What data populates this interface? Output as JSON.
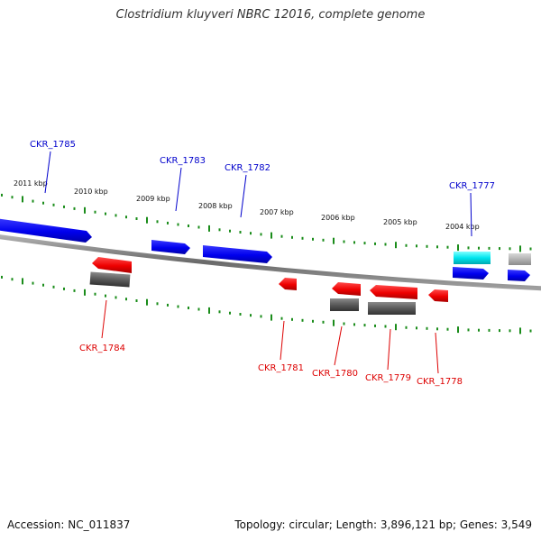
{
  "title": "Clostridium kluyveri NBRC 12016, complete genome",
  "footer": {
    "accession": "Accession: NC_011837",
    "summary": "Topology: circular; Length: 3,896,121 bp; Genes: 3,549"
  },
  "colors": {
    "forward": "#0000ee",
    "reverse": "#ee0000",
    "rna": "#00e5ee",
    "shadow": "#555555",
    "label_forward": "#0000cc",
    "label_reverse": "#dd0000",
    "tick": "#1a8c1a",
    "backbone": "#808080"
  },
  "kbp_labels": [
    "2011 kbp",
    "2010 kbp",
    "2009 kbp",
    "2008 kbp",
    "2007 kbp",
    "2006 kbp",
    "2005 kbp",
    "2004 kbp"
  ],
  "gene_labels": {
    "ckr1785": "CKR_1785",
    "ckr1784": "CKR_1784",
    "ckr1783": "CKR_1783",
    "ckr1782": "CKR_1782",
    "ckr1781": "CKR_1781",
    "ckr1780": "CKR_1780",
    "ckr1779": "CKR_1779",
    "ckr1778": "CKR_1778",
    "ckr1777": "CKR_1777"
  }
}
